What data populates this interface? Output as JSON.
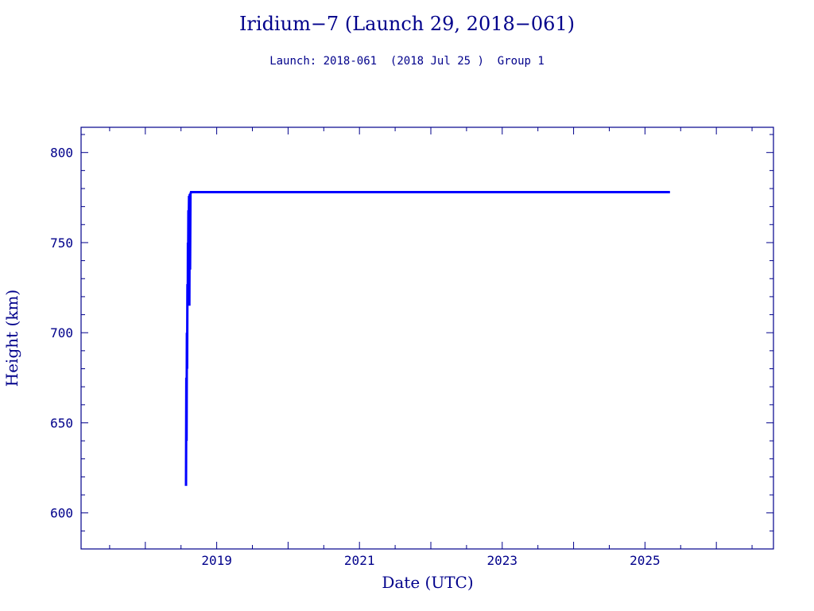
{
  "chart_data": {
    "type": "line",
    "title": "Iridium−7 (Launch 29, 2018−061)",
    "subtitle": "Launch: 2018-061  (2018 Jul 25 )  Group 1",
    "xlabel": "Date (UTC)",
    "ylabel": "Height (km)",
    "xlim": [
      2017.1,
      2026.8
    ],
    "ylim": [
      580,
      814
    ],
    "x_ticks": [
      "2019",
      "2021",
      "2023",
      "2025"
    ],
    "y_ticks": [
      "600",
      "650",
      "700",
      "750",
      "800"
    ],
    "grid": false,
    "colors": {
      "axis": "#00008b",
      "line": "#0000ff"
    },
    "series": [
      {
        "values": [
          [
            2018.57,
            615
          ],
          [
            2018.575,
            675
          ],
          [
            2018.578,
            640
          ],
          [
            2018.582,
            700
          ],
          [
            2018.586,
            680
          ],
          [
            2018.59,
            727
          ],
          [
            2018.594,
            715
          ],
          [
            2018.597,
            750
          ],
          [
            2018.6,
            740
          ],
          [
            2018.604,
            768
          ],
          [
            2018.608,
            760
          ],
          [
            2018.612,
            776
          ],
          [
            2018.617,
            715
          ],
          [
            2018.622,
            777
          ],
          [
            2018.627,
            735
          ],
          [
            2018.632,
            777
          ],
          [
            2018.64,
            778
          ],
          [
            2019.0,
            778
          ],
          [
            2020.0,
            778
          ],
          [
            2021.0,
            778
          ],
          [
            2022.0,
            778
          ],
          [
            2023.0,
            778
          ],
          [
            2024.0,
            778
          ],
          [
            2025.0,
            778
          ],
          [
            2025.35,
            778
          ]
        ]
      }
    ]
  }
}
